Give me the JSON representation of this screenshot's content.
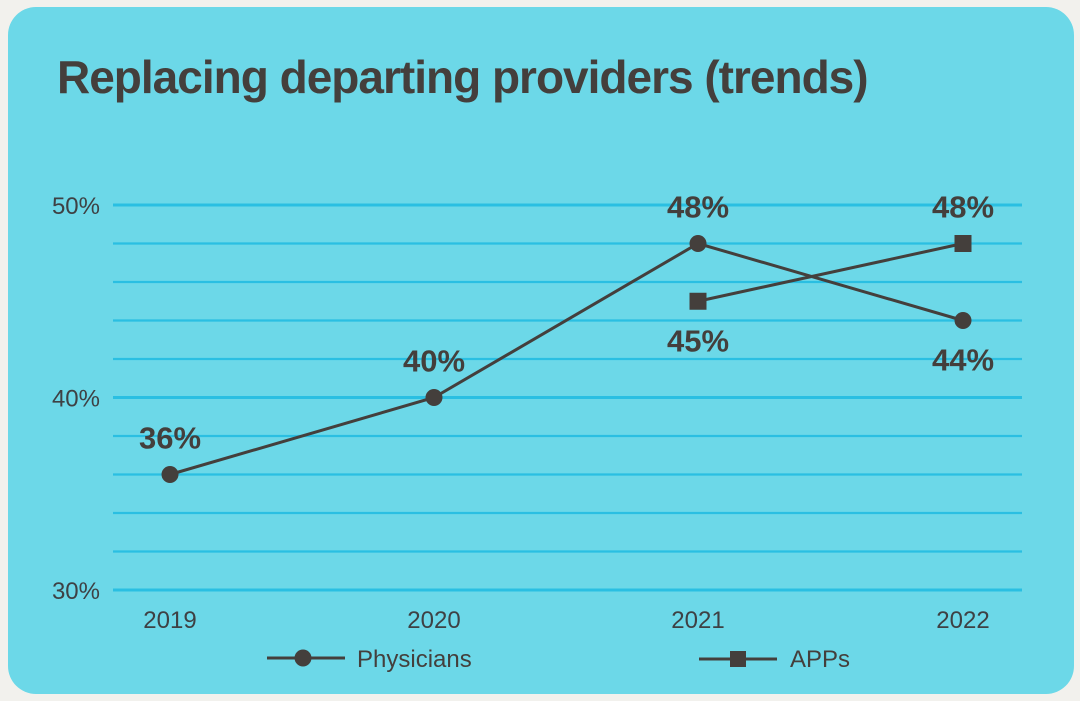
{
  "title": "Replacing departing providers (trends)",
  "colors": {
    "page_bg": "#f2f1ed",
    "card_bg": "#6cd8e8",
    "grid": "#2abfe2",
    "ink": "#443f3c"
  },
  "chart_data": {
    "type": "line",
    "title": "Replacing departing providers (trends)",
    "categories": [
      "2019",
      "2020",
      "2021",
      "2022"
    ],
    "series": [
      {
        "name": "Physicians",
        "marker": "circle",
        "values": [
          36,
          40,
          48,
          44
        ],
        "data_labels": [
          "36%",
          "40%",
          "48%",
          "44%"
        ],
        "label_side": [
          "above",
          "above",
          "above",
          "below"
        ]
      },
      {
        "name": "APPs",
        "marker": "square",
        "values": [
          null,
          null,
          45,
          48
        ],
        "data_labels": [
          null,
          null,
          "45%",
          "48%"
        ],
        "label_side": [
          null,
          null,
          "below",
          "above"
        ]
      }
    ],
    "yticks": [
      {
        "value": 50,
        "label": "50%"
      },
      {
        "value": 40,
        "label": "40%"
      },
      {
        "value": 30,
        "label": "30%"
      }
    ],
    "ylim": [
      30,
      50
    ],
    "grid_step": 2,
    "grid": "on",
    "legend_position": "bottom",
    "legend": [
      {
        "label": "Physicians",
        "marker": "circle"
      },
      {
        "label": "APPs",
        "marker": "square"
      }
    ]
  }
}
